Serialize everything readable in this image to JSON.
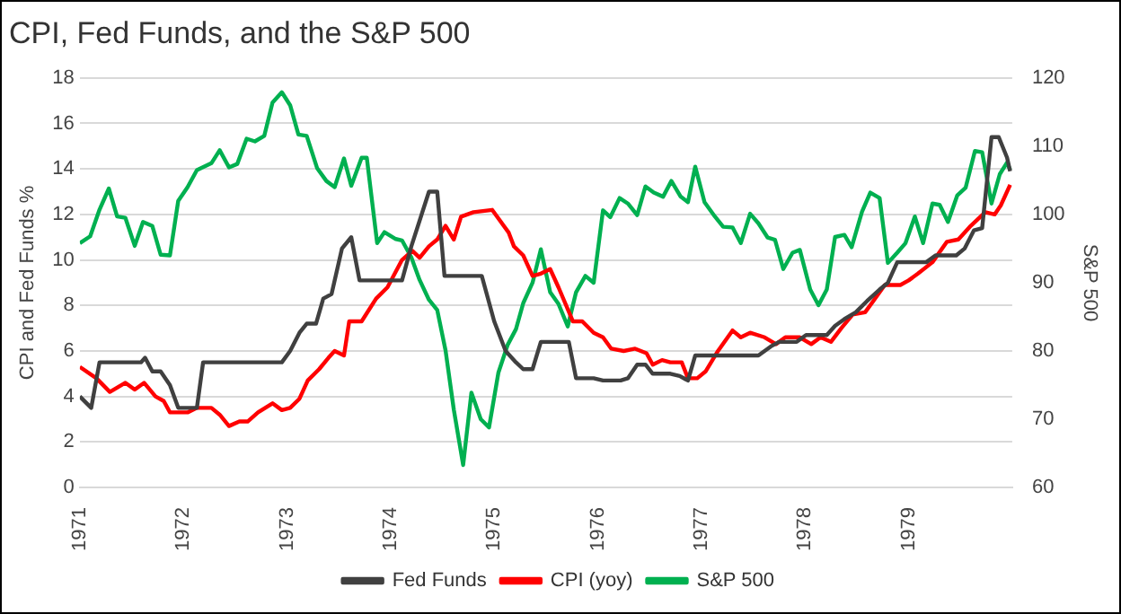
{
  "chart_data": {
    "type": "line",
    "title": "CPI, Fed Funds, and the S&P 500",
    "ylabel": "CPI and Fed Funds %",
    "y2label": "S&P 500",
    "xlim": [
      1971,
      1980
    ],
    "xticks": [
      1971,
      1972,
      1973,
      1974,
      1975,
      1976,
      1977,
      1978,
      1979
    ],
    "ylim": [
      0,
      18
    ],
    "yticks": [
      0,
      2,
      4,
      6,
      8,
      10,
      12,
      14,
      16,
      18
    ],
    "y2lim": [
      60,
      120
    ],
    "y2ticks": [
      60,
      70,
      80,
      90,
      100,
      110,
      120
    ],
    "grid": "y",
    "legend": "bottom",
    "marker": "none",
    "line_style": "solid",
    "series": [
      {
        "name": "Fed Funds",
        "color": "#404040",
        "x": [
          1971.0,
          1971.11,
          1971.19,
          1971.59,
          1971.63,
          1971.7,
          1971.78,
          1971.87,
          1971.95,
          1972.13,
          1972.19,
          1972.95,
          1973.03,
          1973.12,
          1973.19,
          1973.28,
          1973.35,
          1973.43,
          1973.53,
          1973.62,
          1973.7,
          1974.11,
          1974.2,
          1974.37,
          1974.45,
          1974.52,
          1974.88,
          1975.0,
          1975.11,
          1975.21,
          1975.28,
          1975.37,
          1975.45,
          1975.72,
          1975.79,
          1975.96,
          1976.05,
          1976.22,
          1976.29,
          1976.38,
          1976.46,
          1976.53,
          1976.7,
          1976.79,
          1976.87,
          1976.94,
          1977.55,
          1977.67,
          1977.75,
          1977.92,
          1978.01,
          1978.21,
          1978.29,
          1978.38,
          1978.49,
          1978.6,
          1978.72,
          1978.8,
          1978.89,
          1979.17,
          1979.26,
          1979.46,
          1979.54,
          1979.63,
          1979.71,
          1979.8,
          1979.87,
          1979.95,
          1979.98
        ],
        "values": [
          4.0,
          3.5,
          5.5,
          5.5,
          5.7,
          5.1,
          5.1,
          4.5,
          3.5,
          3.5,
          5.5,
          5.5,
          6.0,
          6.8,
          7.2,
          7.2,
          8.3,
          8.5,
          10.5,
          11.0,
          9.1,
          9.1,
          10.6,
          13.0,
          13.0,
          9.3,
          9.3,
          7.3,
          6.0,
          5.5,
          5.2,
          5.2,
          6.4,
          6.4,
          4.8,
          4.8,
          4.7,
          4.7,
          4.8,
          5.4,
          5.4,
          5.0,
          5.0,
          4.9,
          4.7,
          5.8,
          5.8,
          6.2,
          6.4,
          6.4,
          6.7,
          6.7,
          7.1,
          7.4,
          7.7,
          8.2,
          8.7,
          9.0,
          9.9,
          9.9,
          10.2,
          10.2,
          10.5,
          11.3,
          11.4,
          15.4,
          15.4,
          14.5,
          13.9
        ]
      },
      {
        "name": "CPI (yoy)",
        "color": "#ff0000",
        "x": [
          1971.0,
          1971.16,
          1971.29,
          1971.44,
          1971.53,
          1971.62,
          1971.73,
          1971.81,
          1971.87,
          1972.04,
          1972.13,
          1972.27,
          1972.35,
          1972.44,
          1972.54,
          1972.62,
          1972.72,
          1972.86,
          1972.95,
          1973.03,
          1973.12,
          1973.2,
          1973.31,
          1973.4,
          1973.46,
          1973.55,
          1973.6,
          1973.72,
          1973.86,
          1973.97,
          1974.11,
          1974.21,
          1974.28,
          1974.37,
          1974.45,
          1974.53,
          1974.61,
          1974.68,
          1974.8,
          1974.98,
          1975.14,
          1975.19,
          1975.28,
          1975.37,
          1975.45,
          1975.54,
          1975.62,
          1975.76,
          1975.85,
          1975.96,
          1976.05,
          1976.13,
          1976.25,
          1976.36,
          1976.47,
          1976.53,
          1976.62,
          1976.7,
          1976.81,
          1976.87,
          1976.96,
          1977.04,
          1977.16,
          1977.3,
          1977.38,
          1977.47,
          1977.61,
          1977.72,
          1977.81,
          1977.95,
          1978.06,
          1978.15,
          1978.25,
          1978.35,
          1978.46,
          1978.58,
          1978.66,
          1978.77,
          1978.92,
          1979.0,
          1979.09,
          1979.23,
          1979.37,
          1979.48,
          1979.6,
          1979.74,
          1979.83,
          1979.89,
          1979.98
        ],
        "values": [
          5.3,
          4.8,
          4.2,
          4.6,
          4.3,
          4.6,
          4.0,
          3.8,
          3.3,
          3.3,
          3.5,
          3.5,
          3.2,
          2.7,
          2.9,
          2.9,
          3.3,
          3.7,
          3.4,
          3.5,
          3.9,
          4.7,
          5.2,
          5.7,
          6.0,
          5.8,
          7.3,
          7.3,
          8.3,
          8.8,
          10.0,
          10.4,
          10.1,
          10.6,
          10.9,
          11.5,
          10.9,
          11.9,
          12.1,
          12.2,
          11.2,
          10.6,
          10.2,
          9.3,
          9.4,
          9.6,
          8.8,
          7.3,
          7.3,
          6.8,
          6.6,
          6.1,
          6.0,
          6.1,
          5.9,
          5.4,
          5.6,
          5.5,
          5.5,
          4.8,
          4.8,
          5.1,
          6.0,
          6.9,
          6.6,
          6.8,
          6.6,
          6.3,
          6.6,
          6.6,
          6.3,
          6.6,
          6.4,
          7.0,
          7.6,
          7.7,
          8.2,
          8.9,
          8.9,
          9.1,
          9.4,
          9.9,
          10.8,
          10.9,
          11.5,
          12.1,
          12.0,
          12.4,
          13.3
        ]
      },
      {
        "name": "S&P 500",
        "color": "#00b050",
        "axis": "y2",
        "x": [
          1971.0,
          1971.1,
          1971.19,
          1971.28,
          1971.36,
          1971.44,
          1971.53,
          1971.61,
          1971.7,
          1971.78,
          1971.87,
          1971.95,
          1972.04,
          1972.13,
          1972.27,
          1972.35,
          1972.44,
          1972.52,
          1972.61,
          1972.69,
          1972.78,
          1972.86,
          1972.95,
          1973.03,
          1973.11,
          1973.19,
          1973.29,
          1973.38,
          1973.46,
          1973.55,
          1973.62,
          1973.72,
          1973.77,
          1973.87,
          1973.94,
          1974.05,
          1974.11,
          1974.2,
          1974.28,
          1974.37,
          1974.45,
          1974.53,
          1974.61,
          1974.7,
          1974.78,
          1974.87,
          1974.95,
          1975.04,
          1975.13,
          1975.21,
          1975.28,
          1975.37,
          1975.45,
          1975.54,
          1975.62,
          1975.71,
          1975.79,
          1975.88,
          1975.96,
          1976.05,
          1976.12,
          1976.21,
          1976.29,
          1976.38,
          1976.46,
          1976.54,
          1976.63,
          1976.71,
          1976.8,
          1976.87,
          1976.94,
          1977.03,
          1977.13,
          1977.21,
          1977.3,
          1977.38,
          1977.47,
          1977.55,
          1977.64,
          1977.71,
          1977.79,
          1977.88,
          1977.95,
          1978.05,
          1978.13,
          1978.21,
          1978.29,
          1978.38,
          1978.45,
          1978.55,
          1978.63,
          1978.72,
          1978.8,
          1978.89,
          1978.97,
          1979.06,
          1979.14,
          1979.23,
          1979.3,
          1979.38,
          1979.47,
          1979.55,
          1979.64,
          1979.71,
          1979.8,
          1979.88,
          1979.95,
          1979.98
        ],
        "values": [
          95.8,
          96.8,
          100.7,
          103.8,
          99.7,
          99.5,
          95.4,
          98.9,
          98.3,
          94.1,
          94.0,
          102.0,
          104.0,
          106.5,
          107.5,
          109.4,
          106.9,
          107.4,
          111.1,
          110.7,
          111.5,
          116.4,
          117.9,
          116.0,
          111.7,
          111.5,
          106.8,
          104.9,
          104.0,
          108.2,
          104.2,
          108.3,
          108.3,
          95.8,
          97.4,
          96.4,
          96.2,
          93.7,
          90.4,
          87.5,
          86.0,
          80.1,
          71.4,
          63.3,
          73.9,
          70.0,
          68.8,
          76.8,
          80.9,
          83.2,
          87.0,
          90.0,
          94.9,
          88.6,
          86.9,
          83.6,
          88.6,
          91.0,
          90.0,
          100.6,
          99.6,
          102.4,
          101.6,
          99.9,
          104.1,
          103.2,
          102.6,
          104.9,
          102.6,
          101.8,
          107.0,
          101.8,
          99.7,
          98.2,
          98.1,
          95.8,
          100.1,
          98.7,
          96.6,
          96.3,
          92.0,
          94.4,
          94.8,
          89.0,
          86.7,
          89.0,
          96.7,
          97.0,
          95.2,
          100.4,
          103.2,
          102.4,
          92.9,
          94.4,
          95.8,
          99.7,
          95.8,
          101.6,
          101.4,
          98.9,
          102.8,
          103.9,
          109.3,
          109.1,
          101.6,
          105.9,
          107.6,
          106.5
        ]
      }
    ]
  }
}
